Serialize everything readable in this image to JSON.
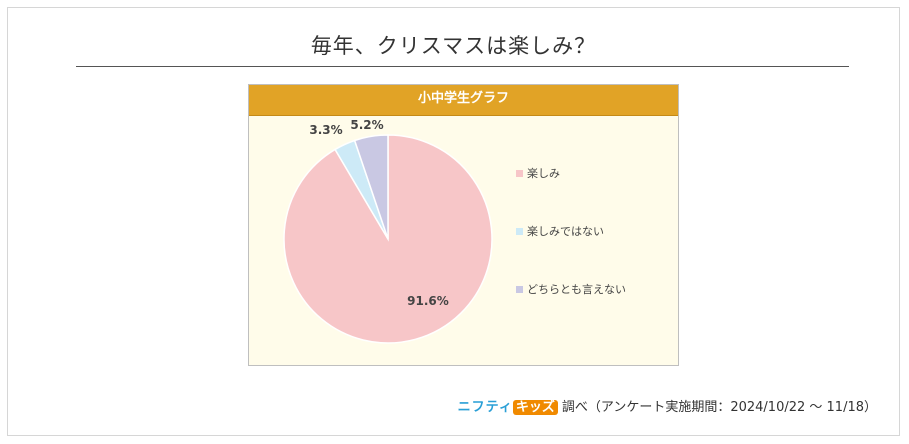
{
  "title": "毎年、クリスマスは楽しみ？",
  "panel": {
    "header": "小中学生グラフ"
  },
  "chart_data": {
    "type": "pie",
    "title": "小中学生グラフ",
    "slices": [
      {
        "label": "楽しみ",
        "value": 91.6,
        "value_label": "91.6%",
        "color": "#f7c6c8"
      },
      {
        "label": "楽しみではない",
        "value": 3.3,
        "value_label": "3.3%",
        "color": "#cdeaf7"
      },
      {
        "label": "どちらとも言えない",
        "value": 5.2,
        "value_label": "5.2%",
        "color": "#c9c8e3"
      }
    ],
    "legend_position": "right",
    "start_angle": "12 o'clock",
    "direction": "clockwise"
  },
  "credit": {
    "logo_part1": "ニフティ",
    "logo_part2": "キッズ",
    "text": "調べ（アンケート実施期間：2024/10/22 ～ 11/18）"
  }
}
